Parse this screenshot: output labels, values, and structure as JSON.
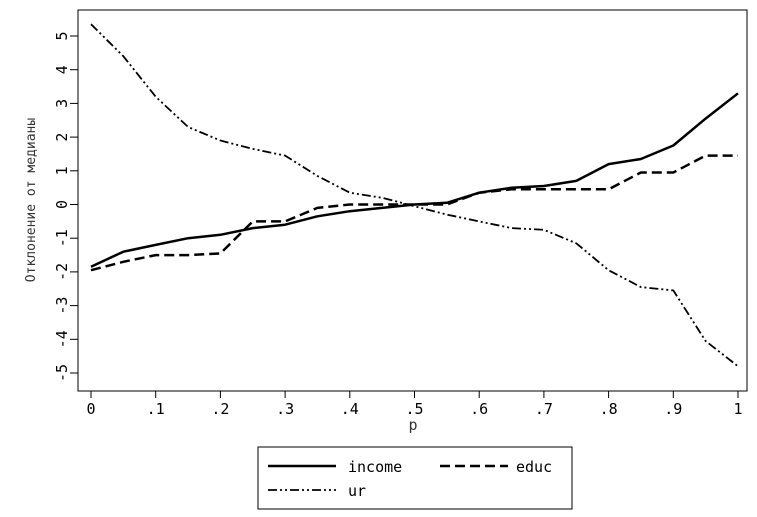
{
  "chart_data": {
    "type": "line",
    "title": "",
    "xlabel": "p",
    "ylabel": "Отклонение от медианы",
    "xlim": [
      0,
      1
    ],
    "ylim": [
      -5.5,
      5.5
    ],
    "x_ticks": [
      0,
      0.1,
      0.2,
      0.3,
      0.4,
      0.5,
      0.6,
      0.7,
      0.8,
      0.9,
      1
    ],
    "x_tick_labels": [
      "0",
      ".1",
      ".2",
      ".3",
      ".4",
      ".5",
      ".6",
      ".7",
      ".8",
      ".9",
      "1"
    ],
    "y_ticks": [
      5,
      4,
      3,
      2,
      1,
      0,
      -1,
      -2,
      -3,
      -4,
      -5
    ],
    "y_tick_labels": [
      "5",
      "4",
      "3",
      "2",
      "1",
      "0",
      "-1",
      "-2",
      "-3",
      "-4",
      "-5"
    ],
    "grid": false,
    "legend_position": "bottom",
    "x": [
      0,
      0.05,
      0.1,
      0.15,
      0.2,
      0.25,
      0.3,
      0.35,
      0.4,
      0.45,
      0.5,
      0.55,
      0.6,
      0.65,
      0.7,
      0.75,
      0.8,
      0.85,
      0.9,
      0.95,
      1
    ],
    "series": [
      {
        "name": "income",
        "style": "solid",
        "values": [
          -1.85,
          -1.4,
          -1.2,
          -1.0,
          -0.9,
          -0.7,
          -0.6,
          -0.35,
          -0.2,
          -0.1,
          0.0,
          0.05,
          0.35,
          0.5,
          0.55,
          0.7,
          1.2,
          1.35,
          1.75,
          2.55,
          3.3
        ]
      },
      {
        "name": "educ",
        "style": "dashed",
        "values": [
          -1.95,
          -1.7,
          -1.5,
          -1.5,
          -1.45,
          -0.5,
          -0.5,
          -0.1,
          0.0,
          0.0,
          0.0,
          0.0,
          0.35,
          0.45,
          0.45,
          0.45,
          0.45,
          0.95,
          0.95,
          1.45,
          1.45
        ]
      },
      {
        "name": "ur",
        "style": "dashdot",
        "values": [
          5.35,
          4.4,
          3.2,
          2.3,
          1.9,
          1.65,
          1.45,
          0.85,
          0.35,
          0.2,
          -0.05,
          -0.3,
          -0.5,
          -0.7,
          -0.75,
          -1.15,
          -1.95,
          -2.45,
          -2.55,
          -4.05,
          -4.8
        ]
      }
    ]
  },
  "colors": {
    "line": "#000000",
    "axis": "#000000",
    "background": "#ffffff"
  }
}
